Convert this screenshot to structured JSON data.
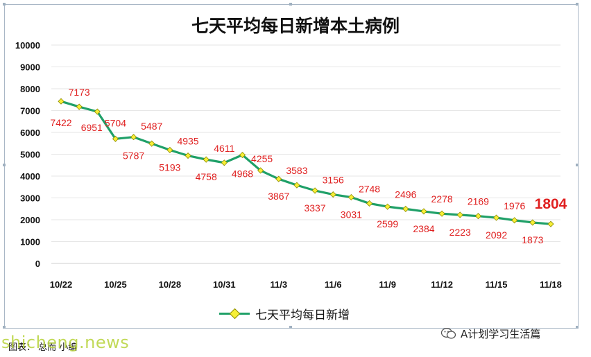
{
  "chart_data": {
    "type": "line",
    "title": "七天平均每日新增本土病例",
    "xlabel": "",
    "ylabel": "",
    "ylim": [
      0,
      10000
    ],
    "yticks": [
      0,
      1000,
      2000,
      3000,
      4000,
      5000,
      6000,
      7000,
      8000,
      9000,
      10000
    ],
    "xtick_labels": [
      "10/22",
      "10/25",
      "10/28",
      "10/31",
      "11/3",
      "11/6",
      "11/9",
      "11/12",
      "11/15",
      "11/18"
    ],
    "grid": true,
    "legend_position": "bottom",
    "series": [
      {
        "name": "七天平均每日新增",
        "color": "#1fa068",
        "marker_color": "#f7ef37",
        "x": [
          "10/22",
          "10/23",
          "10/24",
          "10/25",
          "10/26",
          "10/27",
          "10/28",
          "10/29",
          "10/30",
          "10/31",
          "11/1",
          "11/2",
          "11/3",
          "11/4",
          "11/5",
          "11/6",
          "11/7",
          "11/8",
          "11/9",
          "11/10",
          "11/11",
          "11/12",
          "11/13",
          "11/14",
          "11/15",
          "11/16",
          "11/17",
          "11/18"
        ],
        "values": [
          7422,
          7173,
          6951,
          5704,
          5787,
          5487,
          5193,
          4935,
          4758,
          4611,
          4968,
          4255,
          3867,
          3583,
          3337,
          3156,
          3031,
          2748,
          2599,
          2496,
          2384,
          2278,
          2223,
          2169,
          2092,
          1976,
          1873,
          1804
        ],
        "data_labels": [
          "7422",
          "7173",
          "6951",
          "5704",
          "5787",
          "5487",
          "5193",
          "4935",
          "4758",
          "4611",
          "4968",
          "4255",
          "3867",
          "3583",
          "3337",
          "3156",
          "3031",
          "2748",
          "2599",
          "2496",
          "2384",
          "2278",
          "2223",
          "2169",
          "2092",
          "1976",
          "1873",
          "1804"
        ]
      }
    ]
  },
  "legend": {
    "label": "七天平均每日新增"
  },
  "footer": {
    "brand": "A计划学习生活篇",
    "source": "图表：   总而   小编",
    "watermark": "shicheng.news"
  },
  "colors": {
    "line": "#1fa068",
    "marker": "#f7ef37",
    "label": "#e02020",
    "grid": "#e6e6e6"
  },
  "icons": {
    "brand_icon": "wechat-icon"
  }
}
